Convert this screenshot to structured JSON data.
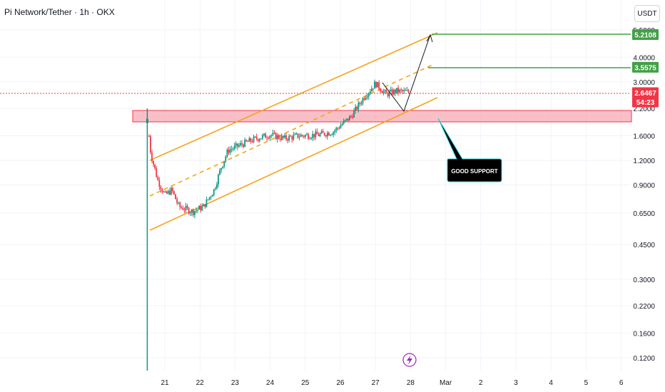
{
  "header": {
    "title": "Pi Network/Tether · 1h · OKX",
    "unit": "USDT"
  },
  "chart_data": {
    "type": "candlestick",
    "title": "Pi Network/Tether · 1h · OKX",
    "scale": "log",
    "x_ticks": [
      "21",
      "22",
      "23",
      "24",
      "25",
      "26",
      "27",
      "28",
      "Mar",
      "2",
      "3",
      "4",
      "5",
      "6"
    ],
    "y_ticks": [
      "5.5000",
      "4.0000",
      "3.0000",
      "2.2000",
      "1.6000",
      "1.2000",
      "0.9000",
      "0.6500",
      "0.4500",
      "0.3000",
      "0.2200",
      "0.1600",
      "0.1200"
    ],
    "y_tick_values": [
      5.5,
      4.0,
      3.0,
      2.2,
      1.6,
      1.2,
      0.9,
      0.65,
      0.45,
      0.3,
      0.22,
      0.16,
      0.12
    ],
    "ylim": [
      0.105,
      6.0
    ],
    "price_path": [
      {
        "date": "20.5",
        "close": 1.95
      },
      {
        "date": "20.6",
        "close": 1.3
      },
      {
        "date": "20.8",
        "close": 0.95
      },
      {
        "date": "21",
        "close": 0.8
      },
      {
        "date": "21.2",
        "close": 0.85
      },
      {
        "date": "21.4",
        "close": 0.7
      },
      {
        "date": "21.8",
        "close": 0.66
      },
      {
        "date": "22.1",
        "close": 0.7
      },
      {
        "date": "22.4",
        "close": 0.85
      },
      {
        "date": "22.6",
        "close": 1.1
      },
      {
        "date": "22.8",
        "close": 1.35
      },
      {
        "date": "23.2",
        "close": 1.45
      },
      {
        "date": "23.6",
        "close": 1.55
      },
      {
        "date": "24",
        "close": 1.62
      },
      {
        "date": "24.4",
        "close": 1.55
      },
      {
        "date": "24.8",
        "close": 1.6
      },
      {
        "date": "25.4",
        "close": 1.62
      },
      {
        "date": "25.8",
        "close": 1.68
      },
      {
        "date": "26.3",
        "close": 2.0
      },
      {
        "date": "26.7",
        "close": 2.55
      },
      {
        "date": "27",
        "close": 2.95
      },
      {
        "date": "27.3",
        "close": 2.6
      },
      {
        "date": "27.6",
        "close": 2.7
      },
      {
        "date": "28",
        "close": 2.6467
      }
    ],
    "levels": [
      {
        "value": 5.2108,
        "label": "5.2108",
        "color": "#43a047"
      },
      {
        "value": 3.5575,
        "label": "3.5575",
        "color": "#43a047"
      },
      {
        "value": 2.6467,
        "label": "2.6467",
        "color": "#f23645"
      }
    ],
    "countdown": "54:23",
    "support_zone": {
      "low": 1.85,
      "high": 2.2
    },
    "annotations": [
      "GOOD SUPPORT"
    ],
    "colors": {
      "up": "#089981",
      "down": "#f23645",
      "channel": "#f7a21b",
      "target": "#43a047"
    }
  }
}
